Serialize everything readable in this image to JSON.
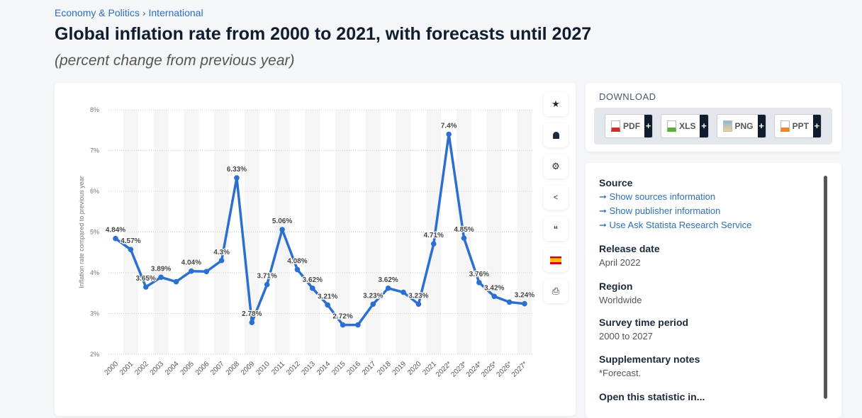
{
  "breadcrumb": {
    "items": [
      "Economy & Politics",
      "International"
    ],
    "separator": "›"
  },
  "title": "Global inflation rate from 2000 to 2021, with forecasts until 2027",
  "subtitle": "(percent change from previous year)",
  "toolbar": [
    "star-icon",
    "bell-icon",
    "gear-icon",
    "share-icon",
    "quote-icon",
    "spain-flag-icon",
    "print-icon"
  ],
  "download": {
    "heading": "DOWNLOAD",
    "buttons": [
      {
        "label": "PDF",
        "color": "#c9302c"
      },
      {
        "label": "XLS",
        "color": "#5cae3b"
      },
      {
        "label": "PNG",
        "color": "#5a8fc8"
      },
      {
        "label": "PPT",
        "color": "#e8872f"
      }
    ],
    "plus": "+"
  },
  "info": {
    "source": {
      "title": "Source",
      "links": [
        "Show sources information",
        "Show publisher information",
        "Use Ask Statista Research Service"
      ],
      "arrow": "➞"
    },
    "release": {
      "title": "Release date",
      "value": "April 2022"
    },
    "region": {
      "title": "Region",
      "value": "Worldwide"
    },
    "period": {
      "title": "Survey time period",
      "value": "2000 to 2027"
    },
    "notes": {
      "title": "Supplementary notes",
      "value": "*Forecast."
    },
    "open": {
      "title": "Open this statistic in..."
    }
  },
  "chart_data": {
    "type": "line",
    "ylabel": "Inflation rate compared to previous year",
    "ylim": [
      2,
      8
    ],
    "yticks": [
      "2%",
      "3%",
      "4%",
      "5%",
      "6%",
      "7%",
      "8%"
    ],
    "categories": [
      "2000",
      "2001",
      "2002",
      "2003",
      "2004",
      "2005",
      "2006",
      "2007",
      "2008",
      "2009",
      "2010",
      "2011",
      "2012",
      "2013",
      "2014",
      "2015",
      "2016",
      "2017",
      "2018",
      "2019",
      "2020",
      "2021",
      "2022*",
      "2023*",
      "2024*",
      "2025*",
      "2026*",
      "2027*"
    ],
    "values": [
      4.84,
      4.57,
      3.65,
      3.89,
      3.78,
      4.04,
      4.03,
      4.3,
      6.33,
      2.78,
      3.71,
      5.06,
      4.08,
      3.62,
      3.21,
      2.72,
      2.72,
      3.23,
      3.62,
      3.52,
      3.23,
      4.71,
      7.4,
      4.85,
      3.76,
      3.42,
      3.28,
      3.24
    ],
    "labels": [
      "4.84%",
      "4.57%",
      "3.65%",
      "3.89%",
      "",
      "4.04%",
      "",
      "4.3%",
      "6.33%",
      "2.78%",
      "3.71%",
      "5.06%",
      "4.08%",
      "3.62%",
      "3.21%",
      "2.72%",
      "",
      "3.23%",
      "3.62%",
      "",
      "3.23%",
      "4.71%",
      "7.4%",
      "4.85%",
      "3.76%",
      "3.42%",
      "",
      "3.24%"
    ],
    "color": "#2b6fd1",
    "grid": true
  }
}
